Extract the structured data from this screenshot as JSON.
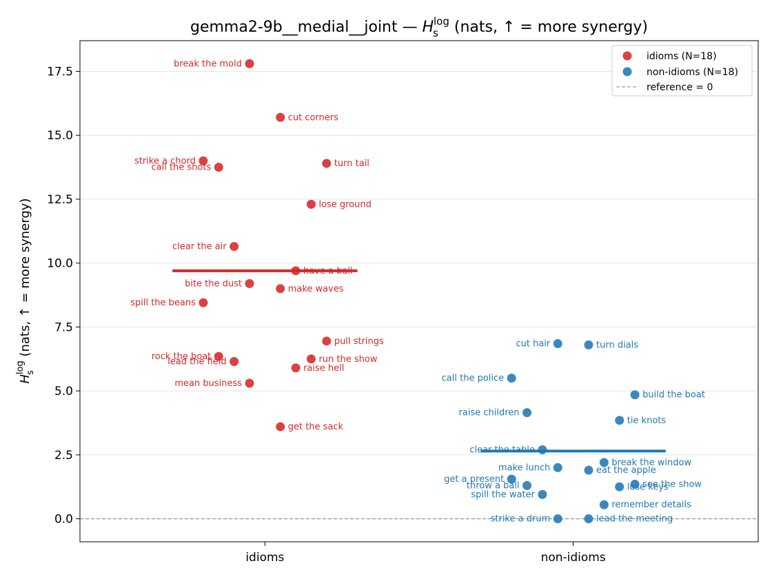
{
  "chart_data": {
    "type": "scatter",
    "title": "gemma2-9b__medial__joint — ",
    "title_symbol": "H",
    "title_sub": "s",
    "title_sup": "log",
    "title_suffix": " (nats, ↑ = more synergy)",
    "ylabel_symbol": "H",
    "ylabel_sub": "s",
    "ylabel_sup": "log",
    "ylabel_suffix": " (nats, ↑ = more synergy)",
    "categories": [
      "idioms",
      "non-idioms"
    ],
    "ylim": [
      -0.9,
      18.7
    ],
    "yticks": [
      "0.0",
      "2.5",
      "5.0",
      "7.5",
      "10.0",
      "12.5",
      "15.0",
      "17.5"
    ],
    "grid": "horizontal",
    "legend_position": "top-right",
    "reference_line": 0,
    "series": [
      {
        "name": "idioms (N=18)",
        "color": "#d62728",
        "mean": 9.7,
        "points": [
          {
            "label": "break the mold",
            "offset": -0.05,
            "y": 17.8
          },
          {
            "label": "cut corners",
            "offset": 0.05,
            "y": 15.7
          },
          {
            "label": "strike a chord",
            "offset": -0.2,
            "y": 14.0
          },
          {
            "label": "call the shots",
            "offset": -0.15,
            "y": 13.75
          },
          {
            "label": "turn tail",
            "offset": 0.2,
            "y": 13.9
          },
          {
            "label": "lose ground",
            "offset": 0.15,
            "y": 12.3
          },
          {
            "label": "clear the air",
            "offset": -0.1,
            "y": 10.65
          },
          {
            "label": "have a ball",
            "offset": 0.1,
            "y": 9.7
          },
          {
            "label": "bite the dust",
            "offset": -0.05,
            "y": 9.2
          },
          {
            "label": "make waves",
            "offset": 0.05,
            "y": 9.0
          },
          {
            "label": "spill the beans",
            "offset": -0.2,
            "y": 8.45
          },
          {
            "label": "pull strings",
            "offset": 0.2,
            "y": 6.95
          },
          {
            "label": "rock the boat",
            "offset": -0.15,
            "y": 6.35
          },
          {
            "label": "lead the field",
            "offset": -0.1,
            "y": 6.15
          },
          {
            "label": "run the show",
            "offset": 0.15,
            "y": 6.25
          },
          {
            "label": "raise hell",
            "offset": 0.1,
            "y": 5.9
          },
          {
            "label": "mean business",
            "offset": -0.05,
            "y": 5.3
          },
          {
            "label": "get the sack",
            "offset": 0.05,
            "y": 3.6
          }
        ]
      },
      {
        "name": "non-idioms (N=18)",
        "color": "#1f77b4",
        "mean": 2.65,
        "points": [
          {
            "label": "cut hair",
            "offset": -0.05,
            "y": 6.85
          },
          {
            "label": "turn dials",
            "offset": 0.05,
            "y": 6.8
          },
          {
            "label": "call the police",
            "offset": -0.2,
            "y": 5.5
          },
          {
            "label": "build the boat",
            "offset": 0.2,
            "y": 4.85
          },
          {
            "label": "raise children",
            "offset": -0.15,
            "y": 4.15
          },
          {
            "label": "tie knots",
            "offset": 0.15,
            "y": 3.85
          },
          {
            "label": "clear the table",
            "offset": -0.1,
            "y": 2.7
          },
          {
            "label": "break the window",
            "offset": 0.1,
            "y": 2.2
          },
          {
            "label": "make lunch",
            "offset": -0.05,
            "y": 2.0
          },
          {
            "label": "eat the apple",
            "offset": 0.05,
            "y": 1.9
          },
          {
            "label": "get a present",
            "offset": -0.2,
            "y": 1.55
          },
          {
            "label": "see the show",
            "offset": 0.2,
            "y": 1.35
          },
          {
            "label": "throw a ball",
            "offset": -0.15,
            "y": 1.3
          },
          {
            "label": "lose keys",
            "offset": 0.15,
            "y": 1.25
          },
          {
            "label": "spill the water",
            "offset": -0.1,
            "y": 0.95
          },
          {
            "label": "remember details",
            "offset": 0.1,
            "y": 0.55
          },
          {
            "label": "strike a drum",
            "offset": -0.05,
            "y": 0.0
          },
          {
            "label": "lead the meeting",
            "offset": 0.05,
            "y": 0.0
          }
        ]
      }
    ],
    "legend": [
      "idioms (N=18)",
      "non-idioms (N=18)",
      "reference = 0"
    ],
    "reference_color": "#999999"
  }
}
